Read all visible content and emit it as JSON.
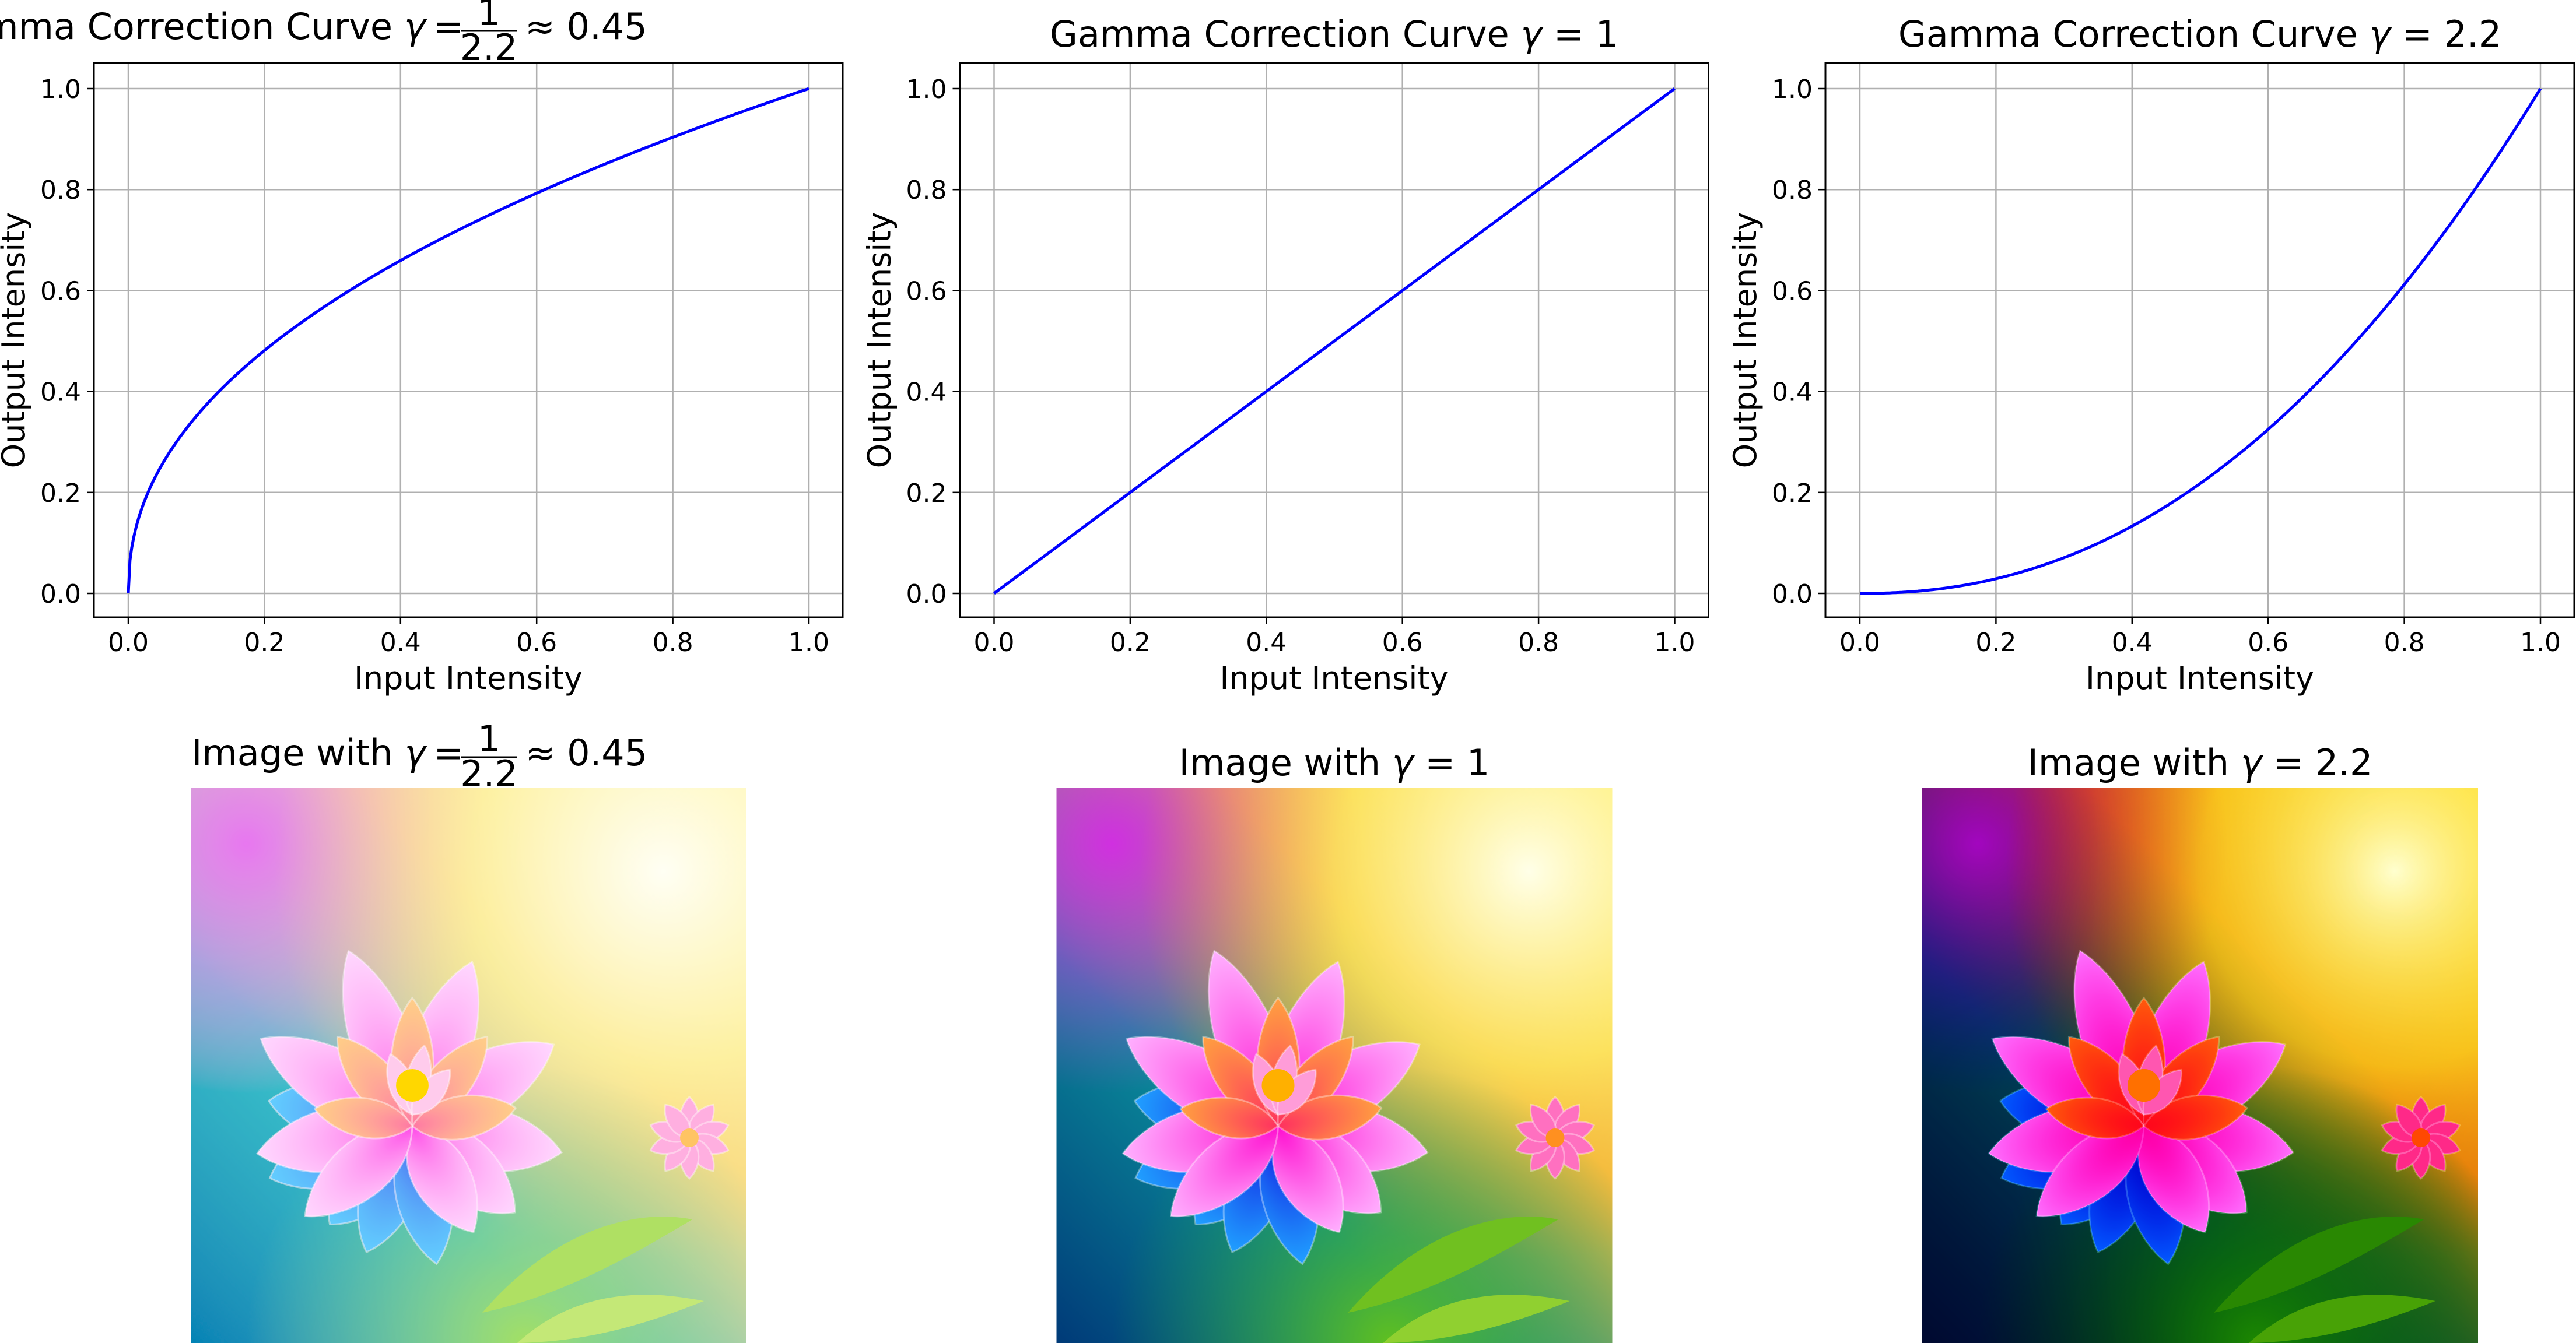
{
  "colors": {
    "curve": "#0000ff",
    "grid": "#b0b0b0",
    "axis": "#000000"
  },
  "chart_data": [
    {
      "type": "line",
      "title": {
        "prefix": "Gamma Correction Curve",
        "gamma": "γ",
        "eq": "=",
        "numerator": "1",
        "denominator": "2.2",
        "approx": "≈ 0.45"
      },
      "gamma": 0.4545,
      "xlabel": "Input Intensity",
      "ylabel": "Output Intensity",
      "xlim": [
        -0.05,
        1.05
      ],
      "ylim": [
        -0.05,
        1.05
      ],
      "grid": true,
      "xticks": [
        "0.0",
        "0.2",
        "0.4",
        "0.6",
        "0.8",
        "1.0"
      ],
      "yticks": [
        "0.0",
        "0.2",
        "0.4",
        "0.6",
        "0.8",
        "1.0"
      ],
      "x": [
        0,
        0.1,
        0.2,
        0.3,
        0.4,
        0.5,
        0.6,
        0.7,
        0.8,
        0.9,
        1.0
      ],
      "y": [
        0,
        0.351,
        0.481,
        0.579,
        0.659,
        0.73,
        0.793,
        0.85,
        0.904,
        0.953,
        1.0
      ]
    },
    {
      "type": "line",
      "title": {
        "prefix": "Gamma Correction Curve",
        "gamma": "γ",
        "eq": "=",
        "value": "1"
      },
      "gamma": 1,
      "xlabel": "Input Intensity",
      "ylabel": "Output Intensity",
      "xlim": [
        -0.05,
        1.05
      ],
      "ylim": [
        -0.05,
        1.05
      ],
      "grid": true,
      "xticks": [
        "0.0",
        "0.2",
        "0.4",
        "0.6",
        "0.8",
        "1.0"
      ],
      "yticks": [
        "0.0",
        "0.2",
        "0.4",
        "0.6",
        "0.8",
        "1.0"
      ],
      "x": [
        0,
        0.1,
        0.2,
        0.3,
        0.4,
        0.5,
        0.6,
        0.7,
        0.8,
        0.9,
        1.0
      ],
      "y": [
        0,
        0.1,
        0.2,
        0.3,
        0.4,
        0.5,
        0.6,
        0.7,
        0.8,
        0.9,
        1.0
      ]
    },
    {
      "type": "line",
      "title": {
        "prefix": "Gamma Correction Curve",
        "gamma": "γ",
        "eq": "=",
        "value": "2.2"
      },
      "gamma": 2.2,
      "xlabel": "Input Intensity",
      "ylabel": "Output Intensity",
      "xlim": [
        -0.05,
        1.05
      ],
      "ylim": [
        -0.05,
        1.05
      ],
      "grid": true,
      "xticks": [
        "0.0",
        "0.2",
        "0.4",
        "0.6",
        "0.8",
        "1.0"
      ],
      "yticks": [
        "0.0",
        "0.2",
        "0.4",
        "0.6",
        "0.8",
        "1.0"
      ],
      "x": [
        0,
        0.1,
        0.2,
        0.3,
        0.4,
        0.5,
        0.6,
        0.7,
        0.8,
        0.9,
        1.0
      ],
      "y": [
        0,
        0.006,
        0.029,
        0.071,
        0.133,
        0.218,
        0.325,
        0.456,
        0.612,
        0.793,
        1.0
      ]
    }
  ],
  "images": [
    {
      "title": {
        "prefix": "Image with",
        "gamma": "γ",
        "eq": "=",
        "numerator": "1",
        "denominator": "2.2",
        "approx": "≈ 0.45"
      },
      "gamma": 0.4545
    },
    {
      "title": {
        "prefix": "Image with",
        "gamma": "γ",
        "eq": "=",
        "value": "1"
      },
      "gamma": 1
    },
    {
      "title": {
        "prefix": "Image with",
        "gamma": "γ",
        "eq": "=",
        "value": "2.2"
      },
      "gamma": 2.2
    }
  ]
}
